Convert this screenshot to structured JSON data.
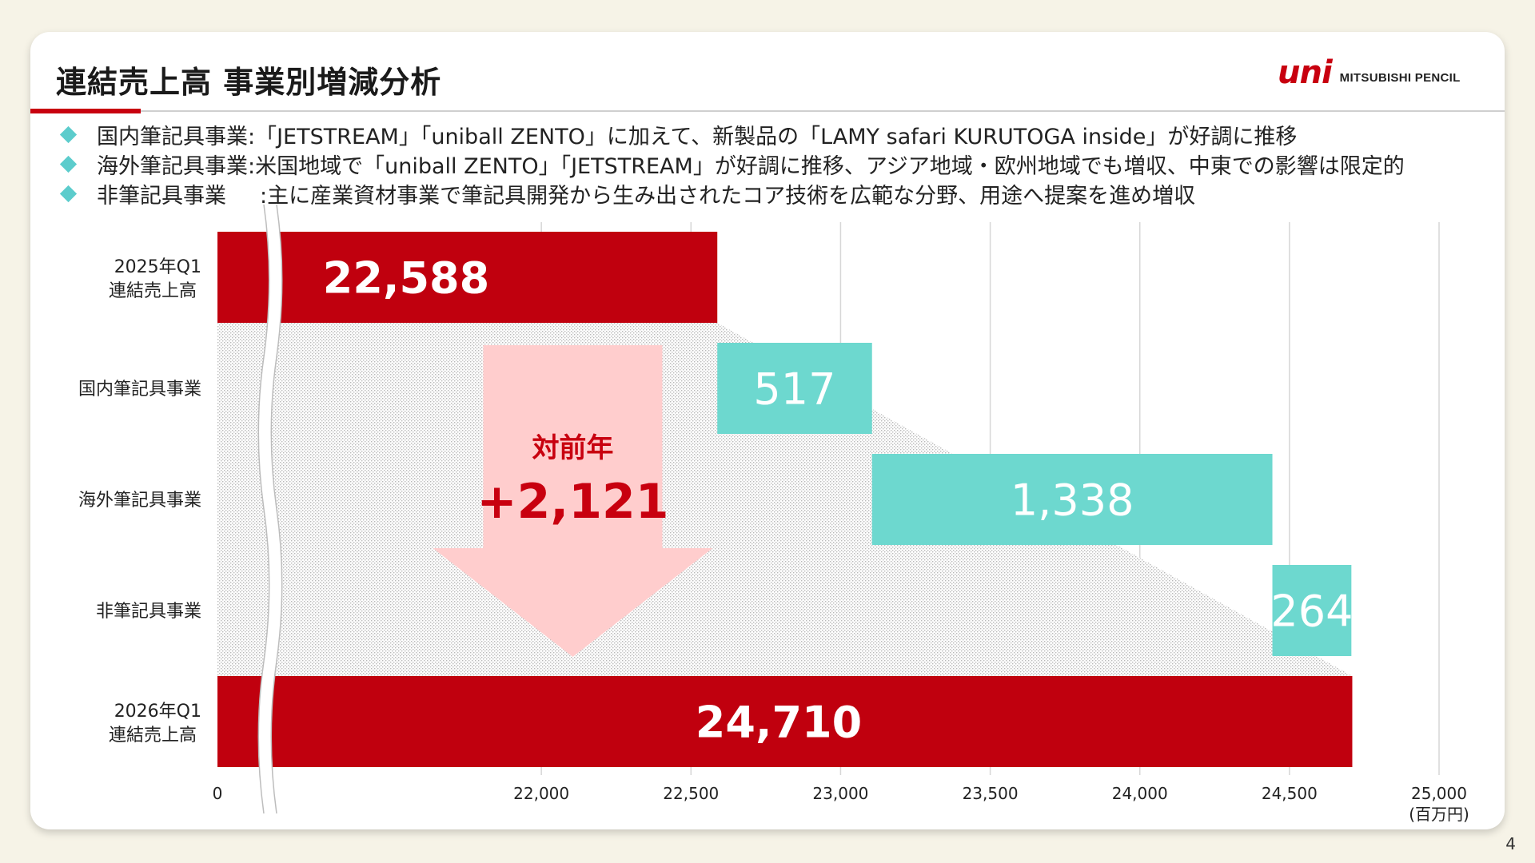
{
  "page": {
    "title": "連結売上高 事業別増減分析",
    "page_number": "4"
  },
  "logo": {
    "mark": "uni",
    "text": "MITSUBISHI PENCIL",
    "color": "#c8000f"
  },
  "bullets": [
    {
      "label": "国内筆記具事業",
      "text": ":「JETSTREAM」「uniball ZENTO」に加えて、新製品の「LAMY safari KURUTOGA inside」が好調に推移"
    },
    {
      "label": "海外筆記具事業",
      "text": ":米国地域で「uniball ZENTO」「JETSTREAM」が好調に推移、アジア地域・欧州地域でも増収、中東での影響は限定的"
    },
    {
      "label": "非筆記具事業",
      "text": ":主に産業資材事業で筆記具開発から生み出されたコア技術を広範な分野、用途へ提案を進め増収"
    }
  ],
  "callout": {
    "label": "対前年",
    "value": "+2,121"
  },
  "colors": {
    "total_bar": "#c0000e",
    "increase_bar": "#6dd8cf",
    "arrow": "#ffcdcd",
    "callout_text": "#c8000f",
    "bullet_marker": "#5ccccc"
  },
  "chart_data": {
    "type": "bar",
    "subtype": "waterfall-horizontal",
    "categories": [
      [
        "2025年Q1",
        "連結売上高"
      ],
      [
        "国内筆記具事業"
      ],
      [
        "海外筆記具事業"
      ],
      [
        "非筆記具事業"
      ],
      [
        "2026年Q1",
        "連結売上高"
      ]
    ],
    "bars": [
      {
        "kind": "total",
        "start": 0,
        "end": 22588,
        "label": "22,588"
      },
      {
        "kind": "increase",
        "start": 22588,
        "end": 23105,
        "label": "517"
      },
      {
        "kind": "increase",
        "start": 23105,
        "end": 24443,
        "label": "1,338"
      },
      {
        "kind": "increase",
        "start": 24443,
        "end": 24707,
        "label": "264"
      },
      {
        "kind": "total",
        "start": 0,
        "end": 24710,
        "label": "24,710"
      }
    ],
    "values": [
      22588,
      517,
      1338,
      264,
      24710
    ],
    "axis": {
      "broken": true,
      "ticks": [
        {
          "value": 0,
          "label": "0"
        },
        {
          "value": 22000,
          "label": "22,000"
        },
        {
          "value": 22500,
          "label": "22,500"
        },
        {
          "value": 23000,
          "label": "23,000"
        },
        {
          "value": 23500,
          "label": "23,500"
        },
        {
          "value": 24000,
          "label": "24,000"
        },
        {
          "value": 24500,
          "label": "24,500"
        },
        {
          "value": 25000,
          "label": "25,000"
        }
      ],
      "unit": "(百万円)",
      "xlim": [
        21500,
        25000
      ]
    },
    "grid": true,
    "legend": "none"
  }
}
